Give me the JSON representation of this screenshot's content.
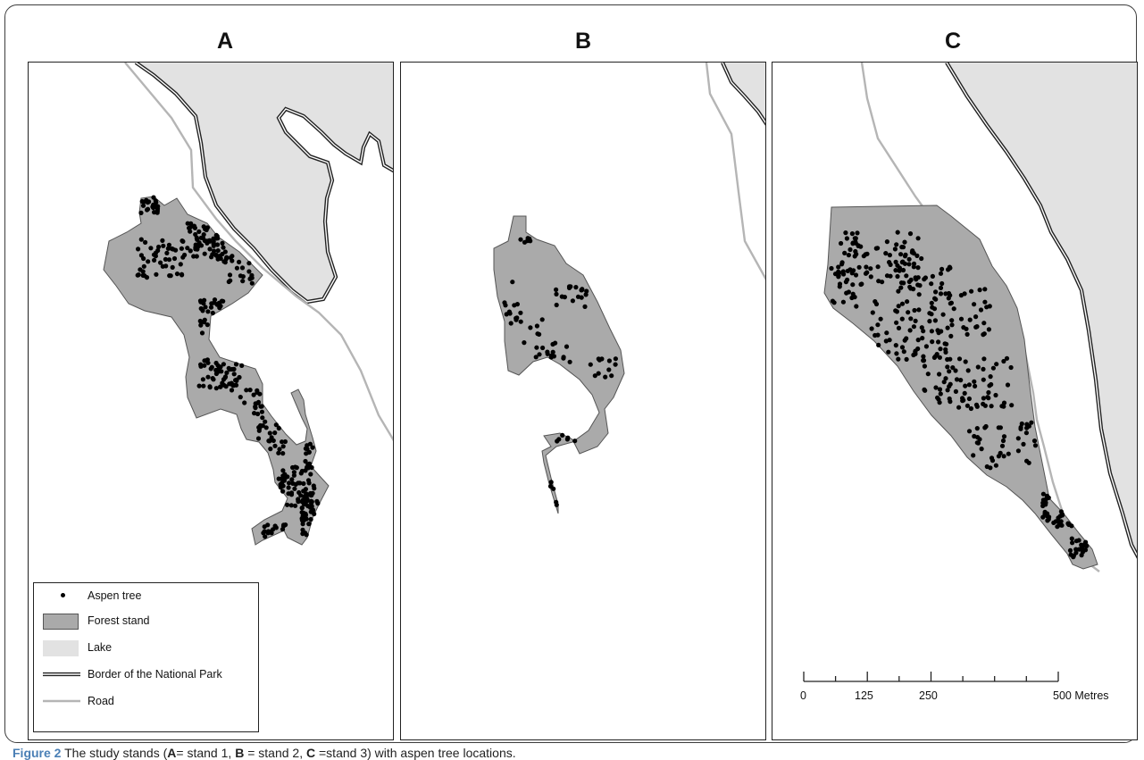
{
  "panels": [
    {
      "id": "A",
      "title": "A"
    },
    {
      "id": "B",
      "title": "B"
    },
    {
      "id": "C",
      "title": "C"
    }
  ],
  "legend": {
    "items": [
      {
        "key": "aspen",
        "label": "Aspen tree"
      },
      {
        "key": "stand",
        "label": "Forest stand"
      },
      {
        "key": "lake",
        "label": "Lake"
      },
      {
        "key": "border",
        "label": "Border of the National Park"
      },
      {
        "key": "road",
        "label": "Road"
      }
    ]
  },
  "scale_bar": {
    "labels": [
      "0",
      "125",
      "250",
      "500 Metres"
    ]
  },
  "colors": {
    "forest_stand": "#aaaaaa",
    "lake": "#e2e2e2",
    "road": "#b5b5b5",
    "tree": "#000000",
    "border": "#222222",
    "caption_accent": "#4a7fb5"
  },
  "caption": {
    "figure_label": "Figure 2",
    "text_1": " The study stands (",
    "a": "A",
    "text_2": "= stand 1, ",
    "b": "B",
    "text_3": " = stand 2, ",
    "c": "C",
    "text_4": " =stand 3) with aspen tree locations."
  }
}
